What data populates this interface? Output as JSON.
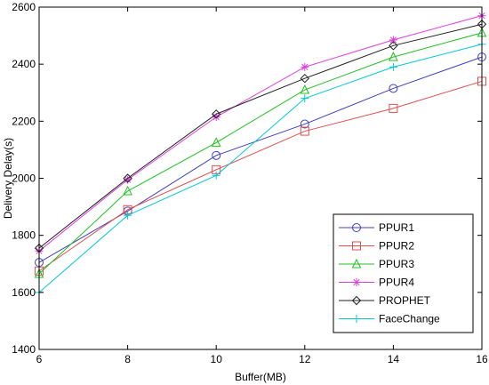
{
  "chart_data": {
    "type": "line",
    "xlabel": "Buffer(MB)",
    "ylabel": "Delivery Delay(s)",
    "x": [
      6,
      8,
      10,
      12,
      14,
      16
    ],
    "xlim": [
      6,
      16
    ],
    "ylim": [
      1400,
      2600
    ],
    "xticks": [
      "6",
      "8",
      "10",
      "12",
      "14",
      "16"
    ],
    "yticks": [
      "1400",
      "1600",
      "1800",
      "2000",
      "2200",
      "2400",
      "2600"
    ],
    "grid": false,
    "legend_position": "bottom-right",
    "series": [
      {
        "name": "PPUR1",
        "color": "#4040c0",
        "marker": "circle",
        "values": [
          1705,
          1885,
          2080,
          2190,
          2315,
          2425
        ]
      },
      {
        "name": "PPUR2",
        "color": "#e05050",
        "marker": "square",
        "values": [
          1675,
          1890,
          2030,
          2165,
          2245,
          2340
        ]
      },
      {
        "name": "PPUR3",
        "color": "#20c020",
        "marker": "triangle",
        "values": [
          1665,
          1955,
          2125,
          2310,
          2425,
          2510
        ]
      },
      {
        "name": "PPUR4",
        "color": "#e040e0",
        "marker": "star",
        "values": [
          1745,
          1995,
          2215,
          2390,
          2485,
          2570
        ]
      },
      {
        "name": "PROPHET",
        "color": "#202020",
        "marker": "diamond",
        "values": [
          1755,
          2000,
          2225,
          2350,
          2465,
          2540
        ]
      },
      {
        "name": "FaceChange",
        "color": "#00c8d8",
        "marker": "plus",
        "values": [
          1600,
          1870,
          2010,
          2280,
          2390,
          2470
        ]
      }
    ]
  }
}
